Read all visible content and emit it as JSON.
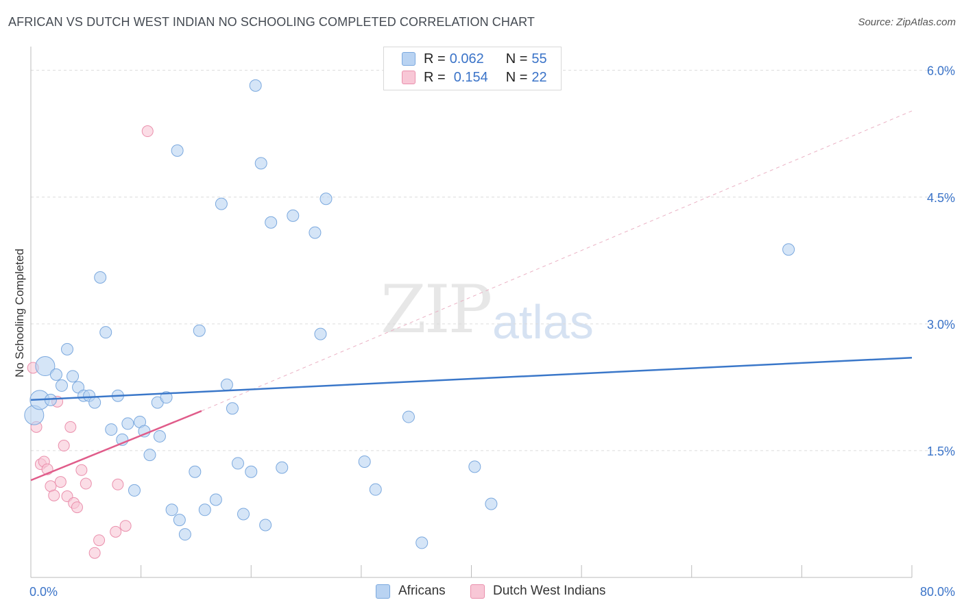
{
  "title": "AFRICAN VS DUTCH WEST INDIAN NO SCHOOLING COMPLETED CORRELATION CHART",
  "source": "Source: ZipAtlas.com",
  "watermark": {
    "part1": "ZIP",
    "part2": "atlas"
  },
  "legend": {
    "rows": [
      {
        "r_label": "R = ",
        "r_value": "0.062",
        "n_label": "N = ",
        "n_value": "55"
      },
      {
        "r_label": "R = ",
        "r_value": "0.154",
        "n_label": "N = ",
        "n_value": "22"
      }
    ]
  },
  "colors": {
    "africans_fill": "#b9d3f2",
    "africans_stroke": "#7aa8de",
    "africans_line": "#3a77c9",
    "dwi_fill": "#f8c7d6",
    "dwi_stroke": "#ea8fac",
    "dwi_line": "#e05c8a",
    "tick_label": "#3a73c8",
    "grid": "#dcdcdc"
  },
  "chart_data": {
    "type": "scatter",
    "title": "AFRICAN VS DUTCH WEST INDIAN NO SCHOOLING COMPLETED CORRELATION CHART",
    "xlabel": "",
    "ylabel": "No Schooling Completed",
    "xlim": [
      0,
      80
    ],
    "ylim": [
      0,
      6.2
    ],
    "x_tick_labels": [
      {
        "value": 0,
        "label": "0.0%"
      },
      {
        "value": 80,
        "label": "80.0%"
      }
    ],
    "y_tick_labels": [
      {
        "value": 1.5,
        "label": "1.5%"
      },
      {
        "value": 3.0,
        "label": "3.0%"
      },
      {
        "value": 4.5,
        "label": "4.5%"
      },
      {
        "value": 6.0,
        "label": "6.0%"
      }
    ],
    "series": [
      {
        "name": "Africans",
        "r": 0.062,
        "n": 55,
        "trend": {
          "x": [
            0,
            80
          ],
          "y": [
            2.1,
            2.6
          ]
        },
        "points": [
          {
            "x": 0.3,
            "y": 1.92,
            "big": true
          },
          {
            "x": 0.8,
            "y": 2.1,
            "big": true
          },
          {
            "x": 1.3,
            "y": 2.5,
            "big": true
          },
          {
            "x": 1.8,
            "y": 2.1
          },
          {
            "x": 2.3,
            "y": 2.4
          },
          {
            "x": 2.8,
            "y": 2.27
          },
          {
            "x": 3.3,
            "y": 2.7
          },
          {
            "x": 3.8,
            "y": 2.38
          },
          {
            "x": 4.3,
            "y": 2.25
          },
          {
            "x": 4.8,
            "y": 2.15
          },
          {
            "x": 5.3,
            "y": 2.15
          },
          {
            "x": 5.8,
            "y": 2.07
          },
          {
            "x": 6.3,
            "y": 3.55
          },
          {
            "x": 6.8,
            "y": 2.9
          },
          {
            "x": 7.3,
            "y": 1.75
          },
          {
            "x": 7.9,
            "y": 2.15
          },
          {
            "x": 8.3,
            "y": 1.63
          },
          {
            "x": 8.8,
            "y": 1.82
          },
          {
            "x": 9.4,
            "y": 1.03
          },
          {
            "x": 9.9,
            "y": 1.84
          },
          {
            "x": 10.3,
            "y": 1.73
          },
          {
            "x": 10.8,
            "y": 1.45
          },
          {
            "x": 11.5,
            "y": 2.07
          },
          {
            "x": 11.7,
            "y": 1.67
          },
          {
            "x": 12.3,
            "y": 2.13
          },
          {
            "x": 12.8,
            "y": 0.8
          },
          {
            "x": 13.3,
            "y": 5.05
          },
          {
            "x": 13.5,
            "y": 0.68
          },
          {
            "x": 14.0,
            "y": 0.51
          },
          {
            "x": 14.9,
            "y": 1.25
          },
          {
            "x": 15.3,
            "y": 2.92
          },
          {
            "x": 15.8,
            "y": 0.8
          },
          {
            "x": 16.8,
            "y": 0.92
          },
          {
            "x": 17.3,
            "y": 4.42
          },
          {
            "x": 17.8,
            "y": 2.28
          },
          {
            "x": 18.3,
            "y": 2.0
          },
          {
            "x": 18.8,
            "y": 1.35
          },
          {
            "x": 19.3,
            "y": 0.75
          },
          {
            "x": 20.0,
            "y": 1.25
          },
          {
            "x": 20.4,
            "y": 5.82
          },
          {
            "x": 20.9,
            "y": 4.9
          },
          {
            "x": 21.3,
            "y": 0.62
          },
          {
            "x": 21.8,
            "y": 4.2
          },
          {
            "x": 22.8,
            "y": 1.3
          },
          {
            "x": 23.8,
            "y": 4.28
          },
          {
            "x": 25.8,
            "y": 4.08
          },
          {
            "x": 26.3,
            "y": 2.88
          },
          {
            "x": 26.8,
            "y": 4.48
          },
          {
            "x": 30.3,
            "y": 1.37
          },
          {
            "x": 31.3,
            "y": 1.04
          },
          {
            "x": 34.3,
            "y": 1.9
          },
          {
            "x": 35.5,
            "y": 0.41
          },
          {
            "x": 40.3,
            "y": 1.31
          },
          {
            "x": 41.8,
            "y": 0.87
          },
          {
            "x": 68.8,
            "y": 3.88
          }
        ]
      },
      {
        "name": "Dutch West Indians",
        "r": 0.154,
        "n": 22,
        "trend": {
          "x": [
            0,
            15.5
          ],
          "y": [
            1.15,
            1.97
          ]
        },
        "trend_ext": {
          "x": [
            15.5,
            80
          ],
          "y": [
            1.97,
            5.52
          ]
        },
        "points": [
          {
            "x": 0.2,
            "y": 2.48
          },
          {
            "x": 0.5,
            "y": 1.78
          },
          {
            "x": 0.9,
            "y": 1.34
          },
          {
            "x": 1.2,
            "y": 1.37
          },
          {
            "x": 1.5,
            "y": 1.28
          },
          {
            "x": 1.8,
            "y": 1.08
          },
          {
            "x": 2.1,
            "y": 0.97
          },
          {
            "x": 2.4,
            "y": 2.08
          },
          {
            "x": 2.7,
            "y": 1.13
          },
          {
            "x": 3.0,
            "y": 1.56
          },
          {
            "x": 3.3,
            "y": 0.96
          },
          {
            "x": 3.6,
            "y": 1.78
          },
          {
            "x": 3.9,
            "y": 0.88
          },
          {
            "x": 4.2,
            "y": 0.83
          },
          {
            "x": 4.6,
            "y": 1.27
          },
          {
            "x": 5.0,
            "y": 1.11
          },
          {
            "x": 5.8,
            "y": 0.29
          },
          {
            "x": 6.2,
            "y": 0.44
          },
          {
            "x": 7.7,
            "y": 0.54
          },
          {
            "x": 7.9,
            "y": 1.1
          },
          {
            "x": 8.6,
            "y": 0.61
          },
          {
            "x": 10.6,
            "y": 5.28
          }
        ]
      }
    ],
    "legend_placement": "top-center",
    "grid": true
  },
  "bottom_legend": [
    {
      "label": "Africans"
    },
    {
      "label": "Dutch West Indians"
    }
  ]
}
